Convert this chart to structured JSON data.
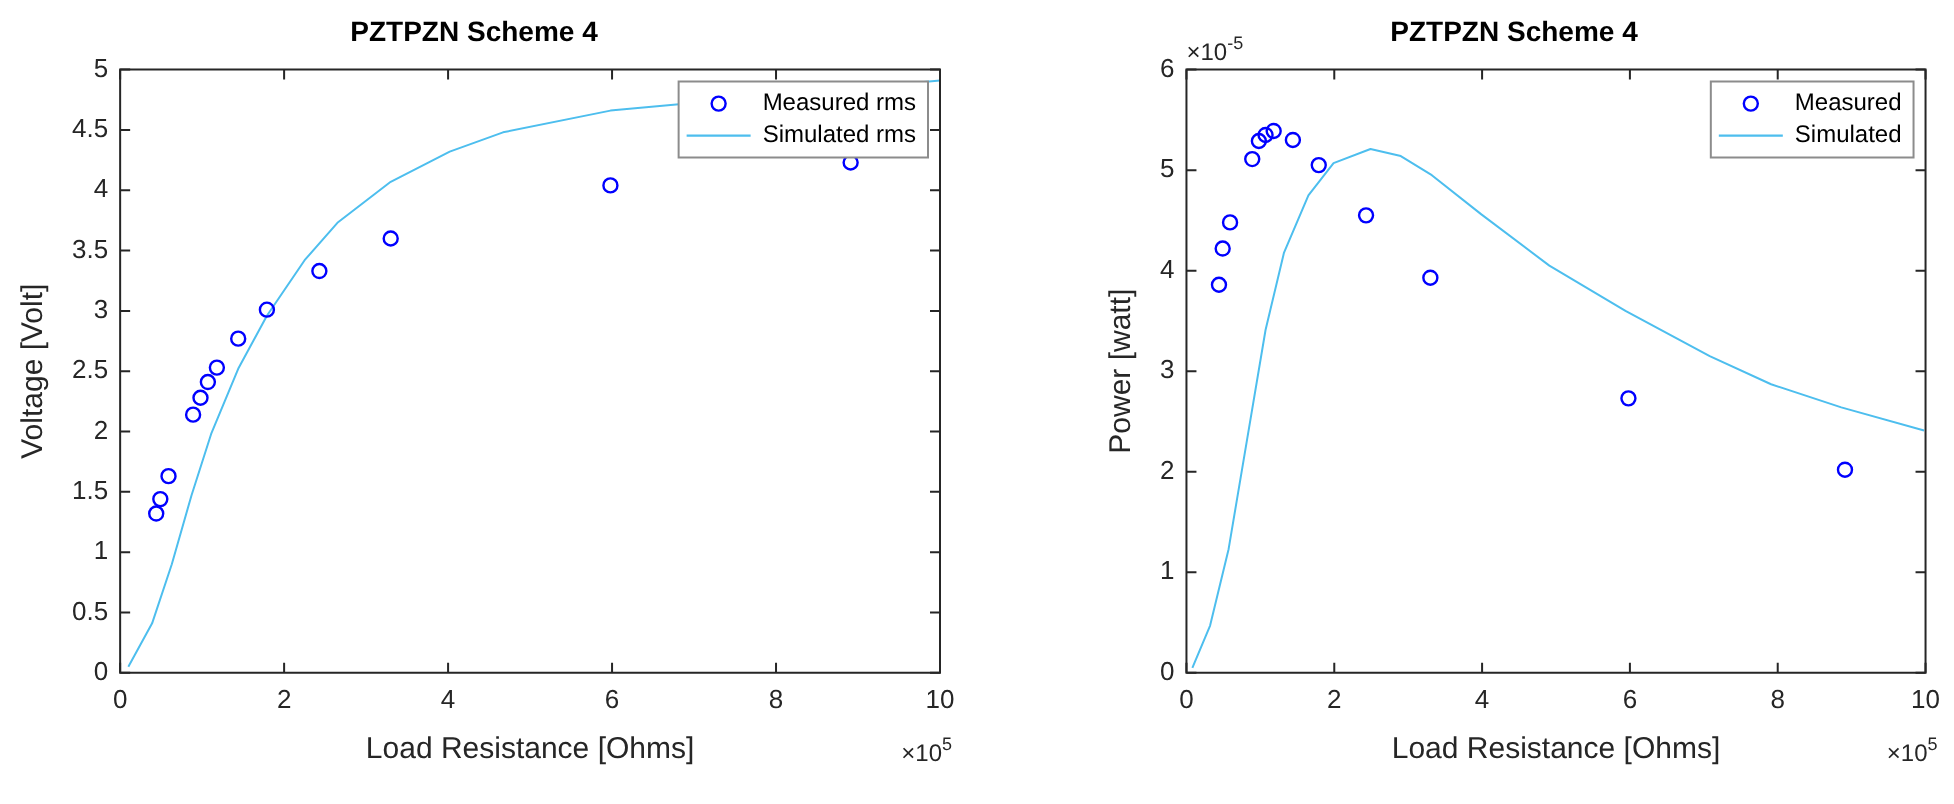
{
  "chart_data": [
    {
      "type": "scatter",
      "title": "PZTPZN Scheme 4",
      "xlabel": "Load Resistance [Ohms]",
      "ylabel": "Voltage [Volt]",
      "annotations": [
        "×10$^{5}$"
      ],
      "xlim": [
        0,
        10
      ],
      "xticks": [
        0,
        2,
        4,
        6,
        8,
        10
      ],
      "ylim": [
        0,
        5
      ],
      "yticks": [
        0,
        0.5,
        1,
        1.5,
        2,
        2.5,
        3,
        3.5,
        4,
        4.5,
        5
      ],
      "grid": false,
      "legend": "top right",
      "series": [
        {
          "name": "Measured rms",
          "type": "scatter",
          "marker": "circle",
          "color": "#0000ff",
          "x": [
            0.44,
            0.49,
            0.59,
            0.89,
            0.98,
            1.07,
            1.18,
            1.44,
            1.79,
            2.43,
            3.3,
            5.98,
            8.91
          ],
          "values": [
            1.32,
            1.44,
            1.63,
            2.14,
            2.28,
            2.41,
            2.53,
            2.77,
            3.01,
            3.33,
            3.6,
            4.04,
            4.23
          ]
        },
        {
          "name": "Simulated rms",
          "type": "line",
          "marker": "none",
          "line_style": "solid",
          "color": "#4dbeee",
          "x": [
            0.1,
            0.39,
            0.63,
            0.87,
            1.11,
            1.44,
            1.79,
            2.25,
            2.65,
            3.3,
            4.02,
            4.67,
            5.98,
            10
          ],
          "values": [
            0.05,
            0.41,
            0.9,
            1.47,
            1.98,
            2.52,
            2.96,
            3.42,
            3.73,
            4.07,
            4.32,
            4.48,
            4.66,
            4.91
          ]
        }
      ]
    },
    {
      "type": "scatter",
      "title": "PZTPZN Scheme 4",
      "xlabel": "Load Resistance [Ohms]",
      "ylabel": "Power [watt]",
      "annotations": [
        "×10$^{5}$",
        "×10$^{-5}$"
      ],
      "xlim": [
        0,
        10
      ],
      "xticks": [
        0,
        2,
        4,
        6,
        8,
        10
      ],
      "ylim": [
        0,
        6
      ],
      "yticks": [
        0,
        1,
        2,
        3,
        4,
        5,
        6
      ],
      "grid": false,
      "legend": "top right",
      "series": [
        {
          "name": "Measured",
          "type": "scatter",
          "marker": "circle",
          "color": "#0000ff",
          "x": [
            0.44,
            0.49,
            0.59,
            0.89,
            0.98,
            1.07,
            1.18,
            1.44,
            1.79,
            2.43,
            3.3,
            5.98,
            8.91
          ],
          "values": [
            3.86,
            4.22,
            4.48,
            5.11,
            5.29,
            5.35,
            5.39,
            5.3,
            5.05,
            4.55,
            3.93,
            2.73,
            2.02
          ]
        },
        {
          "name": "Simulated",
          "type": "line",
          "marker": "none",
          "line_style": "solid",
          "color": "#4dbeee",
          "x": [
            0.08,
            0.32,
            0.57,
            0.82,
            1.07,
            1.32,
            1.65,
            1.99,
            2.49,
            2.9,
            3.32,
            3.99,
            4.91,
            5.94,
            7.08,
            7.91,
            8.86,
            9.98
          ],
          "values": [
            0.05,
            0.47,
            1.23,
            2.32,
            3.41,
            4.18,
            4.75,
            5.07,
            5.21,
            5.14,
            4.95,
            4.56,
            4.05,
            3.6,
            3.15,
            2.87,
            2.64,
            2.41
          ]
        }
      ]
    }
  ]
}
